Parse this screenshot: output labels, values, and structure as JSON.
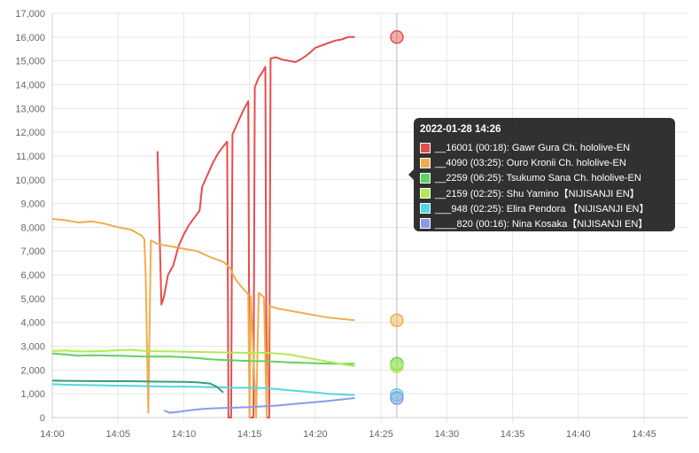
{
  "chart_data": {
    "type": "line",
    "ylim": [
      0,
      17000
    ],
    "y_ticks": [
      "0",
      "1,000",
      "2,000",
      "3,000",
      "4,000",
      "5,000",
      "6,000",
      "7,000",
      "8,000",
      "9,000",
      "10,000",
      "11,000",
      "12,000",
      "13,000",
      "14,000",
      "15,000",
      "16,000",
      "17,000"
    ],
    "x_ticks": [
      "14:00",
      "14:05",
      "14:10",
      "14:15",
      "14:20",
      "14:25",
      "14:30",
      "14:35",
      "14:40",
      "14:45"
    ],
    "xlim_minutes": [
      0,
      48.3
    ],
    "hover_minute": 26.2,
    "grid": true,
    "series": [
      {
        "color": "#e74c4c",
        "points": [
          [
            8.0,
            11200
          ],
          [
            8.3,
            4750
          ],
          [
            8.5,
            5100
          ],
          [
            8.8,
            6000
          ],
          [
            9.2,
            6400
          ],
          [
            9.6,
            7200
          ],
          [
            10.0,
            7700
          ],
          [
            10.4,
            8100
          ],
          [
            10.8,
            8400
          ],
          [
            11.2,
            8700
          ],
          [
            11.4,
            9700
          ],
          [
            11.8,
            10200
          ],
          [
            12.2,
            10700
          ],
          [
            12.6,
            11100
          ],
          [
            13.0,
            11400
          ],
          [
            13.3,
            11600
          ],
          [
            13.4,
            0
          ],
          [
            13.6,
            0
          ],
          [
            13.7,
            11900
          ],
          [
            14.1,
            12400
          ],
          [
            14.6,
            13000
          ],
          [
            14.9,
            13300
          ],
          [
            15.0,
            0
          ],
          [
            15.3,
            0
          ],
          [
            15.4,
            13900
          ],
          [
            15.7,
            14300
          ],
          [
            16.0,
            14550
          ],
          [
            16.2,
            14750
          ],
          [
            16.3,
            0
          ],
          [
            16.5,
            0
          ],
          [
            16.6,
            15100
          ],
          [
            17.0,
            15150
          ],
          [
            17.5,
            15050
          ],
          [
            18.0,
            15000
          ],
          [
            18.5,
            14950
          ],
          [
            19.0,
            15100
          ],
          [
            19.5,
            15300
          ],
          [
            20.0,
            15550
          ],
          [
            20.5,
            15650
          ],
          [
            21.0,
            15750
          ],
          [
            21.5,
            15850
          ],
          [
            22.0,
            15900
          ],
          [
            22.5,
            16000
          ],
          [
            23.0,
            16001
          ]
        ]
      },
      {
        "color": "#f0ad4e",
        "points": [
          [
            0,
            8350
          ],
          [
            1,
            8300
          ],
          [
            2,
            8200
          ],
          [
            3,
            8250
          ],
          [
            4,
            8150
          ],
          [
            5,
            8000
          ],
          [
            6,
            7900
          ],
          [
            6.8,
            7650
          ],
          [
            7.0,
            7500
          ],
          [
            7.1,
            6050
          ],
          [
            7.3,
            200
          ],
          [
            7.5,
            7450
          ],
          [
            8.0,
            7300
          ],
          [
            9.0,
            7200
          ],
          [
            10.0,
            7100
          ],
          [
            11.0,
            7000
          ],
          [
            12.0,
            6750
          ],
          [
            13.0,
            6550
          ],
          [
            13.5,
            6300
          ],
          [
            13.9,
            5850
          ],
          [
            14.3,
            5550
          ],
          [
            14.7,
            5300
          ],
          [
            14.9,
            5200
          ],
          [
            15.0,
            0
          ],
          [
            15.1,
            5100
          ],
          [
            15.5,
            0
          ],
          [
            15.7,
            5250
          ],
          [
            16.1,
            5050
          ],
          [
            16.3,
            0
          ],
          [
            16.5,
            4700
          ],
          [
            17.0,
            4600
          ],
          [
            18.0,
            4500
          ],
          [
            19.0,
            4400
          ],
          [
            20.0,
            4300
          ],
          [
            21.0,
            4200
          ],
          [
            22.0,
            4150
          ],
          [
            23.0,
            4090
          ]
        ]
      },
      {
        "color": "#5fd35f",
        "points": [
          [
            0,
            2700
          ],
          [
            1,
            2650
          ],
          [
            2,
            2600
          ],
          [
            3,
            2620
          ],
          [
            4,
            2610
          ],
          [
            5,
            2600
          ],
          [
            6,
            2580
          ],
          [
            7,
            2560
          ],
          [
            8,
            2570
          ],
          [
            9,
            2560
          ],
          [
            10,
            2540
          ],
          [
            11,
            2500
          ],
          [
            12,
            2450
          ],
          [
            13,
            2420
          ],
          [
            14,
            2400
          ],
          [
            15,
            2380
          ],
          [
            16,
            2370
          ],
          [
            17,
            2350
          ],
          [
            18,
            2320
          ],
          [
            19,
            2300
          ],
          [
            20,
            2280
          ],
          [
            21,
            2270
          ],
          [
            22,
            2260
          ],
          [
            23,
            2259
          ]
        ]
      },
      {
        "color": "#b5e853",
        "points": [
          [
            0,
            2800
          ],
          [
            1,
            2820
          ],
          [
            2,
            2790
          ],
          [
            3,
            2780
          ],
          [
            4,
            2800
          ],
          [
            5,
            2830
          ],
          [
            6,
            2850
          ],
          [
            7,
            2800
          ],
          [
            8,
            2790
          ],
          [
            9,
            2780
          ],
          [
            10,
            2770
          ],
          [
            11,
            2760
          ],
          [
            12,
            2750
          ],
          [
            13,
            2740
          ],
          [
            14,
            2730
          ],
          [
            15,
            2720
          ],
          [
            16,
            2720
          ],
          [
            17,
            2700
          ],
          [
            18,
            2650
          ],
          [
            19,
            2550
          ],
          [
            20,
            2450
          ],
          [
            21,
            2350
          ],
          [
            22,
            2250
          ],
          [
            23,
            2159
          ]
        ]
      },
      {
        "color": "#55d6e0",
        "points": [
          [
            0,
            1400
          ],
          [
            1,
            1380
          ],
          [
            2,
            1370
          ],
          [
            3,
            1360
          ],
          [
            4,
            1350
          ],
          [
            5,
            1340
          ],
          [
            6,
            1330
          ],
          [
            7,
            1320
          ],
          [
            8,
            1310
          ],
          [
            9,
            1300
          ],
          [
            10,
            1300
          ],
          [
            11,
            1290
          ],
          [
            12,
            1280
          ],
          [
            13,
            1270
          ],
          [
            14,
            1250
          ],
          [
            15,
            1260
          ],
          [
            16,
            1240
          ],
          [
            17,
            1200
          ],
          [
            18,
            1150
          ],
          [
            19,
            1100
          ],
          [
            20,
            1050
          ],
          [
            21,
            1000
          ],
          [
            22,
            970
          ],
          [
            23,
            948
          ]
        ]
      },
      {
        "color": "#35a07a",
        "points": [
          [
            0,
            1550
          ],
          [
            2,
            1540
          ],
          [
            4,
            1530
          ],
          [
            6,
            1530
          ],
          [
            8,
            1510
          ],
          [
            10,
            1500
          ],
          [
            11,
            1480
          ],
          [
            12,
            1430
          ],
          [
            12.5,
            1300
          ],
          [
            13.0,
            1050
          ]
        ]
      },
      {
        "color": "#8a9be8",
        "points": [
          [
            8.5,
            300
          ],
          [
            8.9,
            200
          ],
          [
            9.5,
            230
          ],
          [
            10.0,
            270
          ],
          [
            10.5,
            310
          ],
          [
            11.0,
            340
          ],
          [
            11.5,
            360
          ],
          [
            12.0,
            380
          ],
          [
            13.0,
            400
          ],
          [
            14.0,
            420
          ],
          [
            15.0,
            440
          ],
          [
            16.0,
            470
          ],
          [
            17.0,
            500
          ],
          [
            18.0,
            550
          ],
          [
            19.0,
            600
          ],
          [
            20.0,
            650
          ],
          [
            21.0,
            700
          ],
          [
            22.0,
            760
          ],
          [
            23.0,
            820
          ]
        ]
      }
    ],
    "tooltip": {
      "title": "2022-01-28 14:26",
      "rows": [
        {
          "color": "#e74c4c",
          "text": "__16001 (00:18): Gawr Gura Ch. hololive-EN"
        },
        {
          "color": "#f0ad4e",
          "text": "__4090 (03:25): Ouro Kronii Ch. hololive-EN"
        },
        {
          "color": "#5fd35f",
          "text": "__2259 (06:25): Tsukumo Sana Ch. hololive-EN"
        },
        {
          "color": "#b5e853",
          "text": "__2159 (02:25): Shu Yamino【NIJISANJI EN】"
        },
        {
          "color": "#55d6e0",
          "text": "___948 (02:25): Elira Pendora 【NIJISANJI EN】"
        },
        {
          "color": "#8a9be8",
          "text": "____820 (00:16): Nina Kosaka【NIJISANJI EN】"
        }
      ]
    }
  }
}
